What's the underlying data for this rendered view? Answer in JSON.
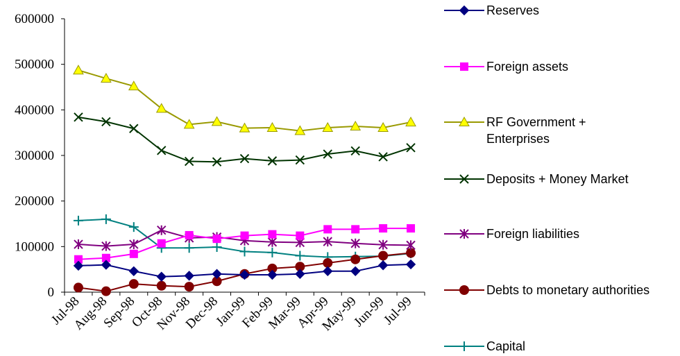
{
  "chart_data": {
    "type": "line",
    "title": "",
    "xlabel": "",
    "ylabel": "",
    "ylim": [
      0,
      600000
    ],
    "yticks": [
      "0",
      "100000",
      "200000",
      "300000",
      "400000",
      "500000",
      "600000"
    ],
    "yticks_values": [
      0,
      100000,
      200000,
      300000,
      400000,
      500000,
      600000
    ],
    "categories": [
      "Jul-98",
      "Aug-98",
      "Sep-98",
      "Oct-98",
      "Nov-98",
      "Dec-98",
      "Jan-99",
      "Feb-99",
      "Mar-99",
      "Apr-99",
      "May-99",
      "Jun-99",
      "Jul-99"
    ],
    "grid": false,
    "legend_position": "right",
    "series": [
      {
        "name": "Reserves",
        "color": "#000080",
        "marker": "diamond",
        "values": [
          58000,
          60000,
          46000,
          34000,
          36000,
          40000,
          38000,
          38000,
          40000,
          46000,
          46000,
          59000,
          61000
        ]
      },
      {
        "name": "Foreign assets",
        "color": "#ff00ff",
        "marker": "square",
        "values": [
          72000,
          75000,
          84000,
          107000,
          125000,
          117000,
          124000,
          127000,
          124000,
          138000,
          138000,
          140000,
          140000
        ]
      },
      {
        "name": "RF Government + Enterprises",
        "color": "#999900",
        "marker": "triangle",
        "values": [
          487000,
          469000,
          452000,
          403000,
          368000,
          374000,
          360000,
          361000,
          354000,
          361000,
          364000,
          361000,
          373000
        ]
      },
      {
        "name": "Deposits + Money Market",
        "color": "#003300",
        "marker": "x",
        "values": [
          384000,
          374000,
          359000,
          311000,
          287000,
          286000,
          293000,
          288000,
          290000,
          303000,
          310000,
          297000,
          317000
        ]
      },
      {
        "name": "Foreign liabilities",
        "color": "#800080",
        "marker": "star",
        "values": [
          105000,
          101000,
          105000,
          136000,
          119000,
          121000,
          113000,
          110000,
          109000,
          111000,
          107000,
          104000,
          103000
        ]
      },
      {
        "name": "Debts to monetary authorities",
        "color": "#800000",
        "marker": "circle",
        "values": [
          10000,
          2000,
          18000,
          14000,
          12000,
          24000,
          40000,
          52000,
          56000,
          64000,
          72000,
          80000,
          86000
        ]
      },
      {
        "name": "Capital",
        "color": "#008080",
        "marker": "plus",
        "values": [
          157000,
          160000,
          143000,
          97000,
          97000,
          99000,
          89000,
          87000,
          80000,
          77000,
          78000,
          79000,
          85000
        ]
      }
    ]
  }
}
